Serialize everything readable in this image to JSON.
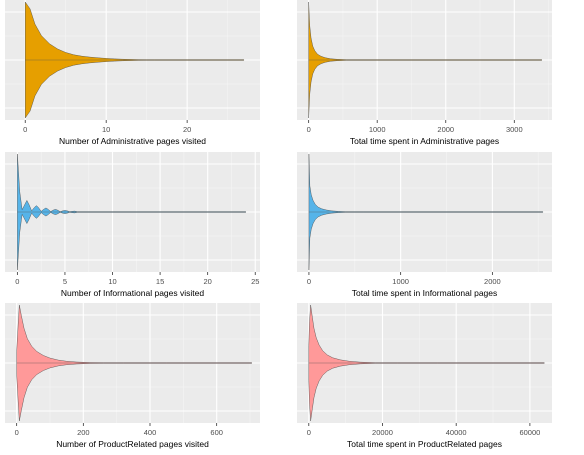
{
  "chart_data": [
    {
      "type": "violin",
      "xlabel": "Number of Administrative pages visited",
      "xlim": [
        -2.5,
        29
      ],
      "xticks": [
        0,
        10,
        20
      ],
      "fill": "#E69F00",
      "grid": true,
      "x_max_extent": 27,
      "density": [
        [
          0,
          1.0
        ],
        [
          0.6,
          0.88
        ],
        [
          1.2,
          0.62
        ],
        [
          2,
          0.42
        ],
        [
          3,
          0.28
        ],
        [
          4,
          0.19
        ],
        [
          5,
          0.13
        ],
        [
          6,
          0.09
        ],
        [
          7,
          0.066
        ],
        [
          8,
          0.05
        ],
        [
          9,
          0.038
        ],
        [
          10,
          0.028
        ],
        [
          11,
          0.02
        ],
        [
          12,
          0.014
        ],
        [
          13,
          0.01
        ],
        [
          14,
          0.007
        ],
        [
          15,
          0.0035
        ],
        [
          16,
          0.002
        ],
        [
          20,
          0.0008
        ],
        [
          27,
          0.0003
        ]
      ]
    },
    {
      "type": "violin",
      "xlabel": "Total time spent in Administrative pages",
      "xlim": [
        -170,
        3550
      ],
      "xticks": [
        0,
        1000,
        2000,
        3000
      ],
      "fill": "#E69F00",
      "grid": true,
      "x_max_extent": 3400,
      "density": [
        [
          0,
          1.0
        ],
        [
          15,
          0.6
        ],
        [
          35,
          0.38
        ],
        [
          60,
          0.24
        ],
        [
          90,
          0.16
        ],
        [
          130,
          0.1
        ],
        [
          180,
          0.065
        ],
        [
          240,
          0.04
        ],
        [
          320,
          0.022
        ],
        [
          420,
          0.012
        ],
        [
          550,
          0.005
        ],
        [
          800,
          0.002
        ],
        [
          1500,
          0.0009
        ],
        [
          3400,
          0.0003
        ]
      ]
    },
    {
      "type": "violin",
      "xlabel": "Number of Informational pages visited",
      "xlim": [
        -1.3,
        25.5
      ],
      "xticks": [
        0,
        5,
        10,
        15,
        20,
        25
      ],
      "fill": "#56B4E9",
      "grid": true,
      "x_max_extent": 24,
      "density": [
        [
          0,
          1.0
        ],
        [
          0.25,
          0.35
        ],
        [
          0.5,
          0.04
        ],
        [
          0.75,
          0.12
        ],
        [
          1,
          0.2
        ],
        [
          1.25,
          0.12
        ],
        [
          1.5,
          0.02
        ],
        [
          1.8,
          0.08
        ],
        [
          2,
          0.11
        ],
        [
          2.2,
          0.08
        ],
        [
          2.5,
          0.012
        ],
        [
          2.8,
          0.05
        ],
        [
          3,
          0.07
        ],
        [
          3.2,
          0.05
        ],
        [
          3.5,
          0.008
        ],
        [
          3.8,
          0.035
        ],
        [
          4,
          0.045
        ],
        [
          4.2,
          0.035
        ],
        [
          4.5,
          0.006
        ],
        [
          4.8,
          0.022
        ],
        [
          5,
          0.028
        ],
        [
          5.2,
          0.022
        ],
        [
          5.5,
          0.004
        ],
        [
          5.8,
          0.012
        ],
        [
          6,
          0.016
        ],
        [
          6.3,
          0.006
        ],
        [
          7,
          0.002
        ],
        [
          10,
          0.0008
        ],
        [
          24,
          0.0003
        ]
      ]
    },
    {
      "type": "violin",
      "xlabel": "Total time spent in Informational pages",
      "xlim": [
        -130,
        2650
      ],
      "xticks": [
        0,
        1000,
        2000
      ],
      "fill": "#56B4E9",
      "grid": true,
      "x_max_extent": 2550,
      "density": [
        [
          0,
          1.0
        ],
        [
          10,
          0.45
        ],
        [
          25,
          0.3
        ],
        [
          45,
          0.2
        ],
        [
          70,
          0.13
        ],
        [
          100,
          0.085
        ],
        [
          140,
          0.055
        ],
        [
          190,
          0.035
        ],
        [
          250,
          0.02
        ],
        [
          320,
          0.011
        ],
        [
          400,
          0.005
        ],
        [
          600,
          0.002
        ],
        [
          1200,
          0.0008
        ],
        [
          2550,
          0.0003
        ]
      ]
    },
    {
      "type": "violin",
      "xlabel": "Number of ProductRelated pages visited",
      "xlim": [
        -35,
        730
      ],
      "xticks": [
        0,
        200,
        400,
        600
      ],
      "fill": "#FF9999",
      "grid": true,
      "x_max_extent": 705,
      "density": [
        [
          0,
          0.2
        ],
        [
          4,
          0.62
        ],
        [
          8,
          1.0
        ],
        [
          14,
          0.82
        ],
        [
          22,
          0.6
        ],
        [
          32,
          0.42
        ],
        [
          45,
          0.29
        ],
        [
          60,
          0.2
        ],
        [
          80,
          0.13
        ],
        [
          100,
          0.085
        ],
        [
          125,
          0.05
        ],
        [
          150,
          0.03
        ],
        [
          180,
          0.017
        ],
        [
          220,
          0.008
        ],
        [
          260,
          0.003
        ],
        [
          320,
          0.0015
        ],
        [
          450,
          0.0008
        ],
        [
          705,
          0.0003
        ]
      ]
    },
    {
      "type": "violin",
      "xlabel": "Total time spent in ProductRelated pages",
      "xlim": [
        -3200,
        66000
      ],
      "xticks": [
        0,
        20000,
        40000,
        60000
      ],
      "fill": "#FF9999",
      "grid": true,
      "x_max_extent": 63900,
      "density": [
        [
          0,
          0.3
        ],
        [
          200,
          0.72
        ],
        [
          500,
          1.0
        ],
        [
          900,
          0.82
        ],
        [
          1400,
          0.6
        ],
        [
          2000,
          0.44
        ],
        [
          2800,
          0.31
        ],
        [
          3800,
          0.21
        ],
        [
          5000,
          0.14
        ],
        [
          6500,
          0.09
        ],
        [
          8500,
          0.055
        ],
        [
          11000,
          0.03
        ],
        [
          14000,
          0.015
        ],
        [
          18000,
          0.006
        ],
        [
          24000,
          0.0025
        ],
        [
          35000,
          0.0012
        ],
        [
          63900,
          0.0003
        ]
      ]
    }
  ]
}
